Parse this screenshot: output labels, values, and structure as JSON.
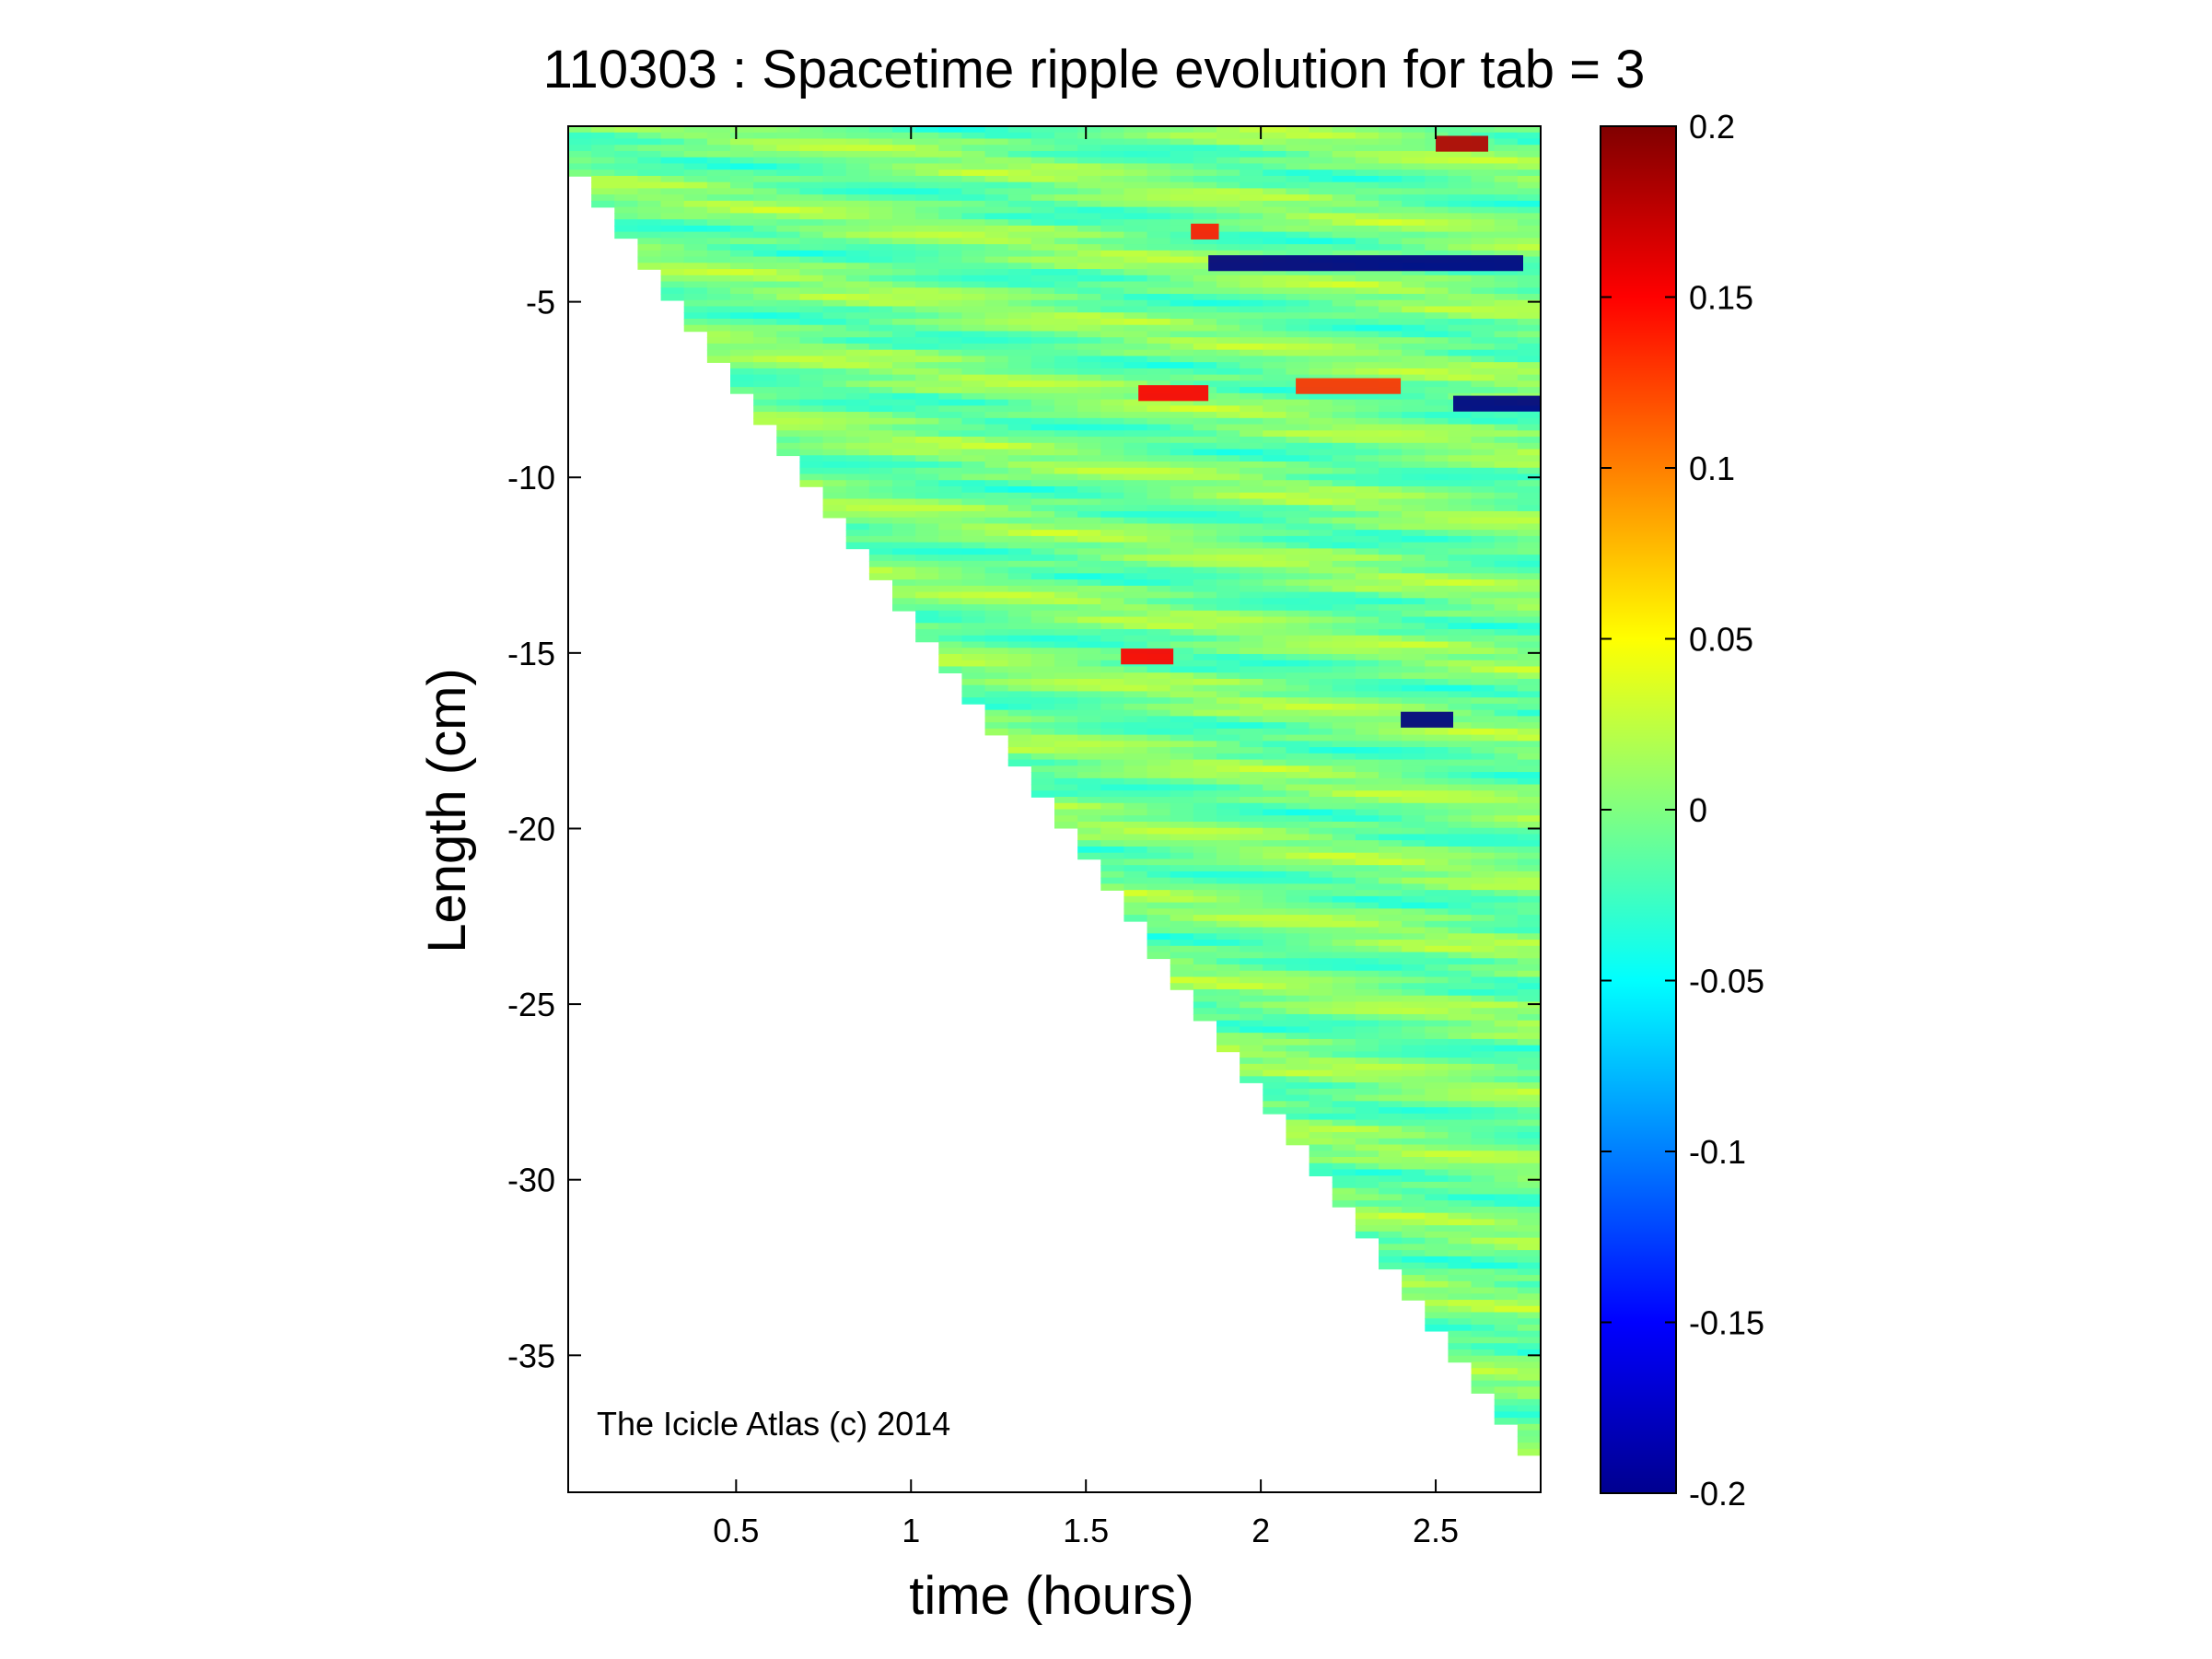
{
  "chart_data": {
    "type": "heatmap",
    "title": "110303 : Spacetime ripple evolution for tab = 3",
    "xlabel": "time (hours)",
    "ylabel": "Length (cm)",
    "xlim": [
      0.02,
      2.8
    ],
    "ylim": [
      -38.9,
      0
    ],
    "x_ticks": [
      {
        "value": 0.5,
        "label": "0.5"
      },
      {
        "value": 1,
        "label": "1"
      },
      {
        "value": 1.5,
        "label": "1.5"
      },
      {
        "value": 2,
        "label": "2"
      },
      {
        "value": 2.5,
        "label": "2.5"
      }
    ],
    "y_ticks": [
      {
        "value": -5,
        "label": "-5"
      },
      {
        "value": -10,
        "label": "-10"
      },
      {
        "value": -15,
        "label": "-15"
      },
      {
        "value": -20,
        "label": "-20"
      },
      {
        "value": -25,
        "label": "-25"
      },
      {
        "value": -30,
        "label": "-30"
      },
      {
        "value": -35,
        "label": "-35"
      }
    ],
    "colorbar": {
      "colormap": "jet",
      "range": [
        -0.2,
        0.2
      ],
      "ticks": [
        {
          "value": 0.2,
          "label": "0.2"
        },
        {
          "value": 0.15,
          "label": "0.15"
        },
        {
          "value": 0.1,
          "label": "0.1"
        },
        {
          "value": 0.05,
          "label": "0.05"
        },
        {
          "value": 0,
          "label": "0"
        },
        {
          "value": -0.05,
          "label": "-0.05"
        },
        {
          "value": -0.1,
          "label": "-0.1"
        },
        {
          "value": -0.15,
          "label": "-0.15"
        },
        {
          "value": -0.2,
          "label": "-0.2"
        }
      ]
    },
    "data_region": {
      "description_of_extent": "data fills the region to the right of the icicle tip; the tip length grows with time",
      "tip_boundary": [
        [
          0.02,
          -0.9
        ],
        [
          2.8,
          -38.3
        ]
      ]
    },
    "features": [
      {
        "t_start": 1.85,
        "t_end": 2.75,
        "length": -3.9,
        "value": -0.2
      },
      {
        "t_start": 2.55,
        "t_end": 2.8,
        "length": -7.9,
        "value": -0.2
      },
      {
        "t_start": 2.4,
        "t_end": 2.55,
        "length": -16.9,
        "value": -0.2
      },
      {
        "t_start": 1.65,
        "t_end": 1.85,
        "length": -7.6,
        "value": 0.15
      },
      {
        "t_start": 1.6,
        "t_end": 1.75,
        "length": -15.1,
        "value": 0.15
      },
      {
        "t_start": 2.5,
        "t_end": 2.65,
        "length": -0.5,
        "value": 0.18
      },
      {
        "t_start": 1.8,
        "t_end": 1.88,
        "length": -3.0,
        "value": 0.14
      },
      {
        "t_start": 2.1,
        "t_end": 2.4,
        "length": -7.4,
        "value": 0.13
      }
    ],
    "grid": false,
    "watermark": "The Icicle Atlas (c) 2014"
  }
}
